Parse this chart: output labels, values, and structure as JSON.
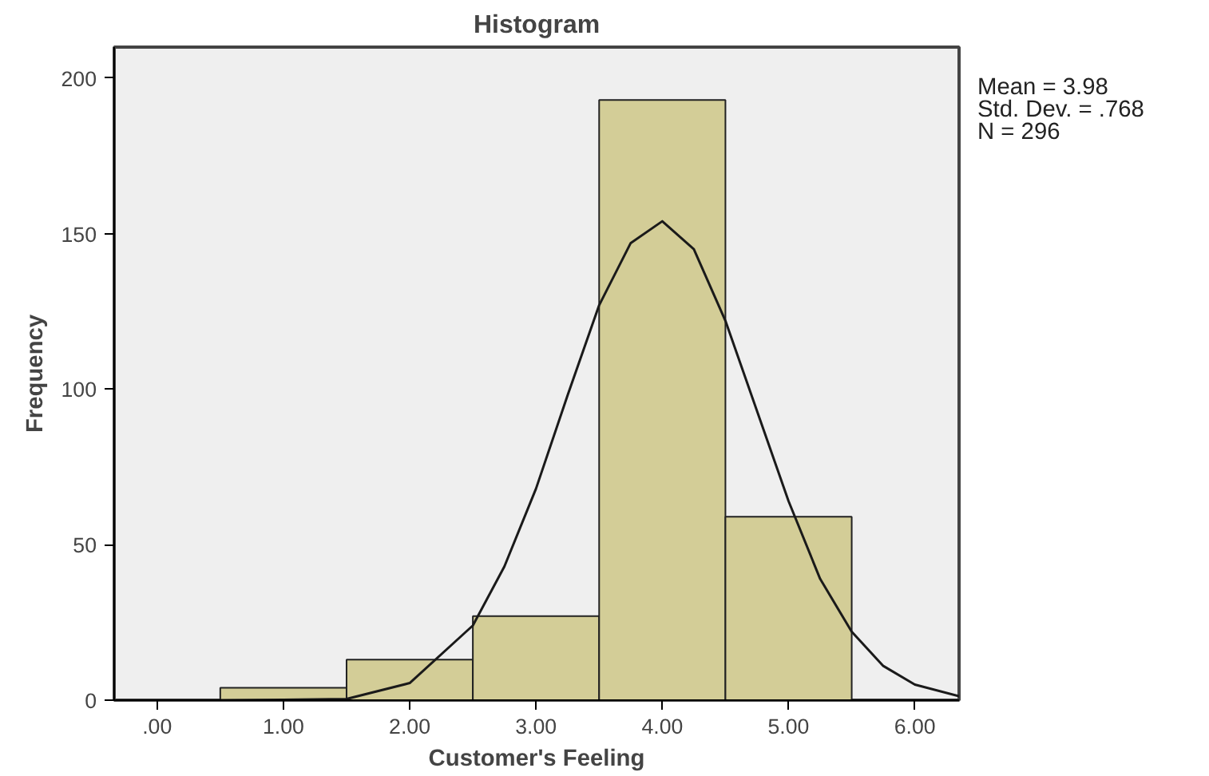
{
  "chart_data": {
    "type": "histogram",
    "title": "Histogram",
    "xlabel": "Customer's Feeling",
    "ylabel": "Frequency",
    "bins": [
      0.5,
      1.5,
      2.5,
      3.5,
      4.5,
      5.5
    ],
    "values": [
      4,
      13,
      27,
      193,
      59
    ],
    "color": "#d3cd97",
    "series": [
      {
        "type": "line",
        "color": "#1a1a1a",
        "x": [
          0.5,
          1.0,
          1.5,
          2.0,
          2.5,
          2.75,
          3.0,
          3.25,
          3.5,
          3.75,
          4.0,
          4.25,
          4.5,
          4.75,
          5.0,
          5.25,
          5.5,
          5.75,
          6.0,
          6.35
        ],
        "values": [
          0,
          0.1,
          0.4,
          5.5,
          24,
          43,
          68,
          98,
          127,
          147,
          154,
          145,
          122,
          93,
          64,
          39,
          22,
          11,
          5,
          1.3
        ]
      }
    ],
    "xlim": [
      -0.34,
      6.35
    ],
    "ylim": [
      0,
      210
    ],
    "xticks": [
      {
        "value": 0,
        "label": ".00"
      },
      {
        "value": 1,
        "label": "1.00"
      },
      {
        "value": 2,
        "label": "2.00"
      },
      {
        "value": 3,
        "label": "3.00"
      },
      {
        "value": 4,
        "label": "4.00"
      },
      {
        "value": 5,
        "label": "5.00"
      },
      {
        "value": 6,
        "label": "6.00"
      }
    ],
    "yticks": [
      0,
      50,
      100,
      150,
      200
    ],
    "annotations": [
      "Mean = 3.98",
      "Std. Dev. = .768",
      "N = 296"
    ]
  }
}
